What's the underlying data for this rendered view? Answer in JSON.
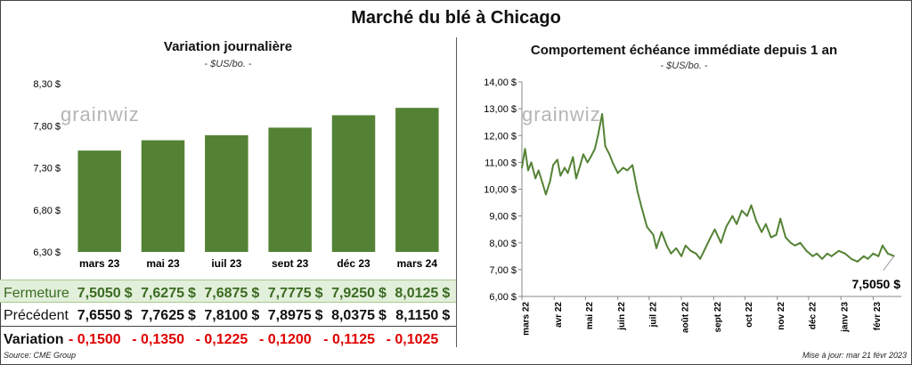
{
  "title": "Marché du blé à Chicago",
  "left_panel": {
    "title": "Variation  journalière",
    "unit": "- $US/bo. -",
    "logo": "grainwiz"
  },
  "right_panel": {
    "title": "Comportement  échéance immédiate depuis 1 an",
    "unit": "- $US/bo. -",
    "logo": "grainwiz",
    "last_value_label": "7,5050 $"
  },
  "table": {
    "row_labels": {
      "close": "Fermeture",
      "previous": "Précédent",
      "change": "Variation"
    },
    "currency": "$",
    "close": [
      "7,5050",
      "7,6275",
      "7,6875",
      "7,7775",
      "7,9250",
      "8,0125"
    ],
    "previous": [
      "7,6550",
      "7,7625",
      "7,8100",
      "7,8975",
      "8,0375",
      "8,1150"
    ],
    "change": [
      "- 0,1500",
      "- 0,1350",
      "- 0,1225",
      "- 0,1200",
      "- 0,1125",
      "- 0,1025"
    ]
  },
  "footer": {
    "source": "Source: CME Group",
    "updated": "Mise à jour: mar 21 févr 2023"
  },
  "colors": {
    "bar": "#548235",
    "line": "#548235",
    "change": "#e00000",
    "close_row_bg": "#e2efda"
  },
  "chart_data": [
    {
      "type": "bar",
      "categories": [
        "mars 23",
        "mai 23",
        "juil 23",
        "sept 23",
        "déc 23",
        "mars 24"
      ],
      "values": [
        7.505,
        7.6275,
        7.6875,
        7.7775,
        7.925,
        8.0125
      ],
      "title": "Variation  journalière",
      "ylabel": "- $US/bo. -",
      "ylim": [
        6.3,
        8.3
      ],
      "yticks": [
        6.3,
        6.8,
        7.3,
        7.8,
        8.3
      ],
      "ytick_labels": [
        "6,30 $",
        "6,80 $",
        "7,30 $",
        "7,80 $",
        "8,30 $"
      ],
      "grid": false
    },
    {
      "type": "line",
      "title": "Comportement  échéance immédiate depuis 1 an",
      "ylabel": "- $US/bo. -",
      "ylim": [
        6.0,
        14.0
      ],
      "yticks": [
        6,
        7,
        8,
        9,
        10,
        11,
        12,
        13,
        14
      ],
      "ytick_labels": [
        "6,00 $",
        "7,00 $",
        "8,00 $",
        "9,00 $",
        "10,00 $",
        "11,00 $",
        "12,00 $",
        "13,00 $",
        "14,00 $"
      ],
      "xtick_labels": [
        "mars 22",
        "avr 22",
        "mai 22",
        "juin 22",
        "juil 22",
        "août 22",
        "sept 22",
        "oct 22",
        "nov 22",
        "déc 22",
        "janv 23",
        "févr 23"
      ],
      "x": [
        "2022-03-01",
        "2022-03-04",
        "2022-03-07",
        "2022-03-10",
        "2022-03-14",
        "2022-03-17",
        "2022-03-21",
        "2022-03-24",
        "2022-03-28",
        "2022-03-31",
        "2022-04-04",
        "2022-04-07",
        "2022-04-11",
        "2022-04-14",
        "2022-04-19",
        "2022-04-22",
        "2022-04-26",
        "2022-04-29",
        "2022-05-03",
        "2022-05-06",
        "2022-05-10",
        "2022-05-13",
        "2022-05-17",
        "2022-05-20",
        "2022-05-24",
        "2022-05-27",
        "2022-06-01",
        "2022-06-06",
        "2022-06-10",
        "2022-06-15",
        "2022-06-20",
        "2022-06-24",
        "2022-06-29",
        "2022-07-05",
        "2022-07-08",
        "2022-07-13",
        "2022-07-18",
        "2022-07-22",
        "2022-07-27",
        "2022-08-01",
        "2022-08-05",
        "2022-08-10",
        "2022-08-15",
        "2022-08-19",
        "2022-08-24",
        "2022-08-29",
        "2022-09-02",
        "2022-09-08",
        "2022-09-13",
        "2022-09-19",
        "2022-09-23",
        "2022-09-28",
        "2022-10-03",
        "2022-10-07",
        "2022-10-12",
        "2022-10-17",
        "2022-10-21",
        "2022-10-26",
        "2022-10-31",
        "2022-11-04",
        "2022-11-09",
        "2022-11-14",
        "2022-11-18",
        "2022-11-23",
        "2022-11-29",
        "2022-12-05",
        "2022-12-09",
        "2022-12-14",
        "2022-12-19",
        "2022-12-23",
        "2022-12-30",
        "2023-01-05",
        "2023-01-11",
        "2023-01-17",
        "2023-01-23",
        "2023-01-27",
        "2023-02-01",
        "2023-02-06",
        "2023-02-10",
        "2023-02-15",
        "2023-02-21"
      ],
      "values": [
        10.8,
        11.5,
        10.7,
        11.0,
        10.4,
        10.7,
        10.2,
        9.8,
        10.3,
        10.9,
        11.1,
        10.5,
        10.8,
        10.6,
        11.2,
        10.4,
        10.9,
        11.3,
        11.0,
        11.2,
        11.5,
        12.0,
        12.8,
        11.6,
        11.3,
        11.0,
        10.6,
        10.8,
        10.7,
        10.9,
        9.9,
        9.3,
        8.6,
        8.3,
        7.8,
        8.4,
        7.9,
        7.6,
        7.8,
        7.5,
        7.9,
        7.7,
        7.6,
        7.4,
        7.8,
        8.2,
        8.5,
        8.0,
        8.6,
        9.0,
        8.7,
        9.2,
        9.0,
        9.4,
        8.8,
        8.4,
        8.7,
        8.2,
        8.3,
        8.9,
        8.2,
        8.0,
        7.9,
        8.0,
        7.7,
        7.5,
        7.6,
        7.4,
        7.6,
        7.5,
        7.7,
        7.6,
        7.4,
        7.3,
        7.5,
        7.4,
        7.6,
        7.5,
        7.9,
        7.6,
        7.505
      ],
      "last_value": 7.505,
      "grid": false
    }
  ]
}
